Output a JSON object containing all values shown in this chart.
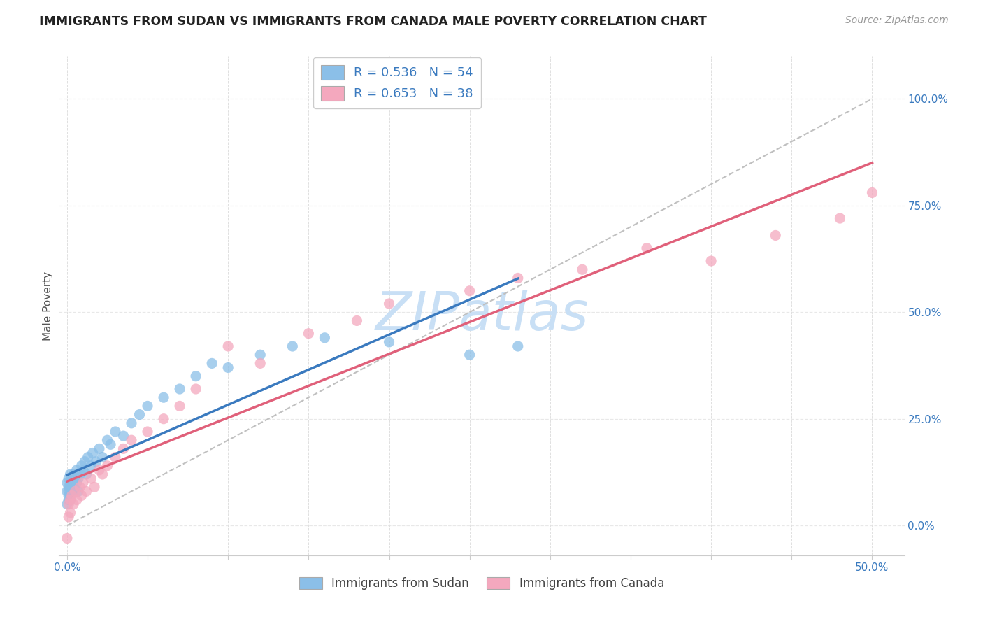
{
  "title": "IMMIGRANTS FROM SUDAN VS IMMIGRANTS FROM CANADA MALE POVERTY CORRELATION CHART",
  "source": "Source: ZipAtlas.com",
  "ylabel": "Male Poverty",
  "x_tick_labels": [
    "0.0%",
    "",
    "",
    "",
    "",
    "",
    "",
    "",
    "",
    "",
    "50.0%"
  ],
  "x_tick_values": [
    0.0,
    0.05,
    0.1,
    0.15,
    0.2,
    0.25,
    0.3,
    0.35,
    0.4,
    0.45,
    0.5
  ],
  "y_tick_labels_right": [
    "0.0%",
    "25.0%",
    "50.0%",
    "75.0%",
    "100.0%"
  ],
  "y_tick_values": [
    0.0,
    0.25,
    0.5,
    0.75,
    1.0
  ],
  "xlim": [
    -0.005,
    0.52
  ],
  "ylim": [
    -0.07,
    1.1
  ],
  "sudan_R": 0.536,
  "sudan_N": 54,
  "canada_R": 0.653,
  "canada_N": 38,
  "color_sudan": "#8bbfe8",
  "color_canada": "#f4a8be",
  "color_sudan_line": "#3a7abf",
  "color_canada_line": "#e0607a",
  "color_diag": "#c0c0c0",
  "color_label_blue": "#3a7abf",
  "watermark_color": "#c8dff5",
  "background_color": "#ffffff",
  "grid_color_h": "#e8e8e8",
  "grid_color_v": "#e0e0e0",
  "sudan_x": [
    0.0,
    0.0,
    0.0,
    0.001,
    0.001,
    0.001,
    0.001,
    0.001,
    0.002,
    0.002,
    0.002,
    0.002,
    0.002,
    0.003,
    0.003,
    0.003,
    0.004,
    0.004,
    0.004,
    0.005,
    0.005,
    0.006,
    0.006,
    0.007,
    0.007,
    0.008,
    0.009,
    0.01,
    0.011,
    0.012,
    0.013,
    0.015,
    0.016,
    0.018,
    0.02,
    0.022,
    0.025,
    0.027,
    0.03,
    0.035,
    0.04,
    0.045,
    0.05,
    0.06,
    0.07,
    0.08,
    0.09,
    0.1,
    0.12,
    0.14,
    0.16,
    0.2,
    0.25,
    0.28
  ],
  "sudan_y": [
    0.08,
    0.1,
    0.05,
    0.07,
    0.09,
    0.11,
    0.06,
    0.08,
    0.1,
    0.07,
    0.09,
    0.12,
    0.06,
    0.08,
    0.11,
    0.09,
    0.1,
    0.08,
    0.12,
    0.09,
    0.11,
    0.1,
    0.13,
    0.11,
    0.08,
    0.12,
    0.14,
    0.13,
    0.15,
    0.12,
    0.16,
    0.14,
    0.17,
    0.15,
    0.18,
    0.16,
    0.2,
    0.19,
    0.22,
    0.21,
    0.24,
    0.26,
    0.28,
    0.3,
    0.32,
    0.35,
    0.38,
    0.37,
    0.4,
    0.42,
    0.44,
    0.43,
    0.4,
    0.42
  ],
  "canada_x": [
    0.0,
    0.001,
    0.001,
    0.002,
    0.002,
    0.003,
    0.004,
    0.005,
    0.006,
    0.008,
    0.009,
    0.01,
    0.012,
    0.015,
    0.017,
    0.02,
    0.022,
    0.025,
    0.03,
    0.035,
    0.04,
    0.05,
    0.06,
    0.07,
    0.08,
    0.1,
    0.12,
    0.15,
    0.18,
    0.2,
    0.25,
    0.28,
    0.32,
    0.36,
    0.4,
    0.44,
    0.48,
    0.5
  ],
  "canada_y": [
    -0.03,
    0.05,
    0.02,
    0.06,
    0.03,
    0.07,
    0.05,
    0.08,
    0.06,
    0.09,
    0.07,
    0.1,
    0.08,
    0.11,
    0.09,
    0.13,
    0.12,
    0.14,
    0.16,
    0.18,
    0.2,
    0.22,
    0.25,
    0.28,
    0.32,
    0.42,
    0.38,
    0.45,
    0.48,
    0.52,
    0.55,
    0.58,
    0.6,
    0.65,
    0.62,
    0.68,
    0.72,
    0.78
  ],
  "sudan_line_x": [
    0.0,
    0.28
  ],
  "canada_line_x": [
    0.0,
    0.5
  ],
  "diag_line": [
    [
      0.0,
      0.0
    ],
    [
      0.5,
      1.0
    ]
  ]
}
